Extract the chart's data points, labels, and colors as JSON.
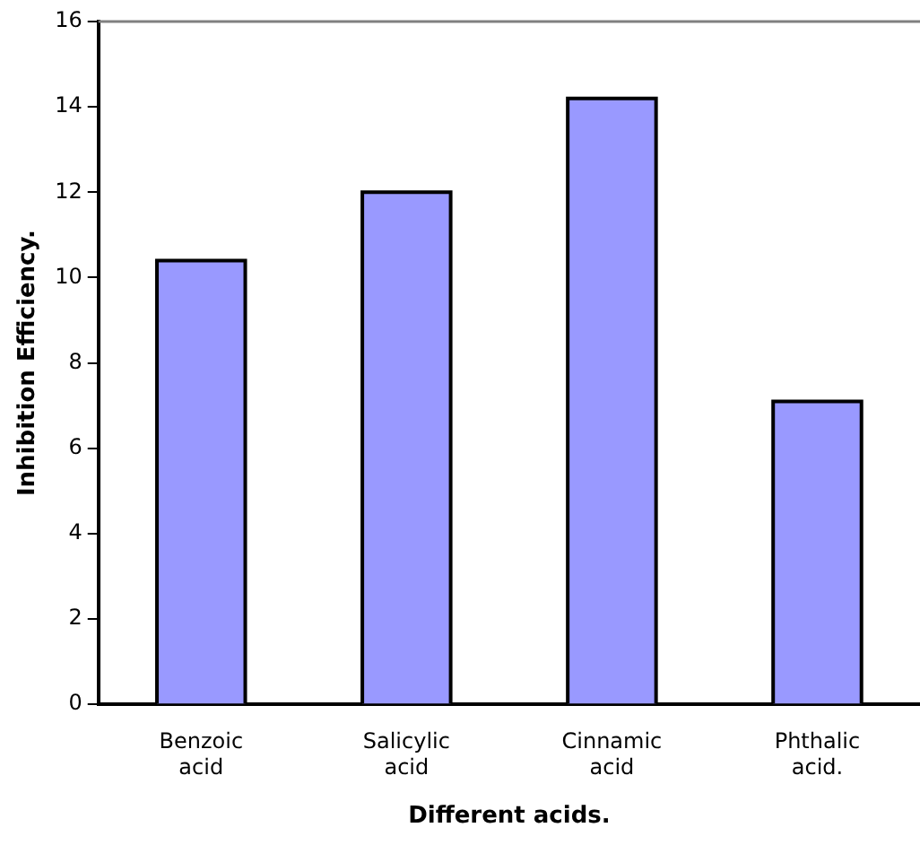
{
  "chart_data": {
    "type": "bar",
    "xlabel": "Different acids.",
    "ylabel": "Inhibition Efficiency.",
    "categories": [
      "Benzoic acid",
      "Salicylic acid",
      "Cinnamic acid",
      "Phthalic acid."
    ],
    "values": [
      10.4,
      12.0,
      14.2,
      7.1
    ],
    "color": "#9999ff",
    "ylim": [
      0,
      16
    ],
    "yticks": [
      0,
      2,
      4,
      6,
      8,
      10,
      12,
      14,
      16
    ],
    "grid": false,
    "legend": false
  }
}
